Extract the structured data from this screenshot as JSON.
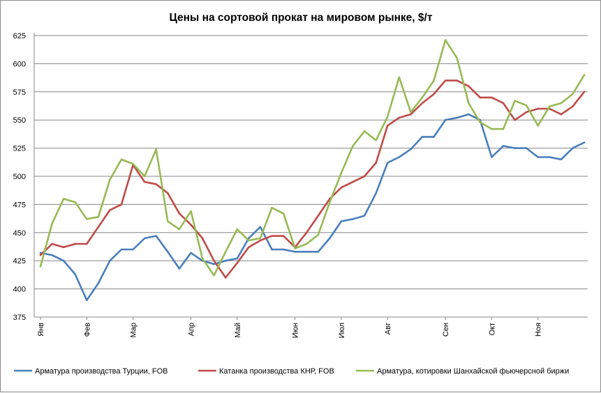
{
  "chart_data": {
    "type": "line",
    "title": "Цены на сортовой прокат на мировом рынке, $/т",
    "xlabel": "",
    "ylabel": "",
    "ylim": [
      375,
      625
    ],
    "yticks": [
      375,
      400,
      425,
      450,
      475,
      500,
      525,
      550,
      575,
      600,
      625
    ],
    "grid": "horizontal",
    "legend_position": "bottom",
    "month_labels": [
      {
        "label": "Янв",
        "index": 0
      },
      {
        "label": "Фев",
        "index": 4
      },
      {
        "label": "Мар",
        "index": 8
      },
      {
        "label": "Апр",
        "index": 13
      },
      {
        "label": "Май",
        "index": 17
      },
      {
        "label": "Июн",
        "index": 22
      },
      {
        "label": "Июл",
        "index": 26
      },
      {
        "label": "Авг",
        "index": 30
      },
      {
        "label": "Сен",
        "index": 35
      },
      {
        "label": "Окт",
        "index": 39
      },
      {
        "label": "Ноя",
        "index": 43
      }
    ],
    "series": [
      {
        "name": "Арматура производства Турции, FOB",
        "color": "#4a7ebb",
        "values": [
          432,
          430,
          425,
          413,
          390,
          405,
          425,
          435,
          435,
          445,
          447,
          433,
          418,
          432,
          425,
          422,
          425,
          427,
          445,
          455,
          435,
          435,
          433,
          433,
          433,
          445,
          460,
          462,
          465,
          485,
          512,
          517,
          524,
          535,
          535,
          550,
          552,
          555,
          550,
          517,
          527,
          525,
          525,
          517,
          517,
          515,
          525,
          530
        ]
      },
      {
        "name": "Катанка производства КНР, FOB",
        "color": "#be4b48",
        "values": [
          430,
          440,
          437,
          440,
          440,
          455,
          470,
          475,
          510,
          495,
          493,
          485,
          467,
          457,
          445,
          425,
          410,
          423,
          437,
          443,
          447,
          447,
          437,
          450,
          465,
          480,
          490,
          495,
          500,
          512,
          545,
          552,
          555,
          565,
          573,
          585,
          585,
          580,
          570,
          570,
          565,
          550,
          557,
          560,
          560,
          555,
          562,
          575
        ]
      },
      {
        "name": "Арматура, котировки Шанхайской фьючерсной биржи",
        "color": "#98b954",
        "values": [
          420,
          458,
          480,
          477,
          462,
          464,
          497,
          515,
          511,
          500,
          524,
          460,
          453,
          469,
          427,
          412,
          433,
          453,
          443,
          445,
          472,
          467,
          436,
          440,
          448,
          477,
          503,
          527,
          540,
          532,
          553,
          588,
          557,
          570,
          585,
          621,
          605,
          565,
          548,
          542,
          542,
          567,
          563,
          545,
          562,
          565,
          573,
          590
        ]
      }
    ]
  }
}
